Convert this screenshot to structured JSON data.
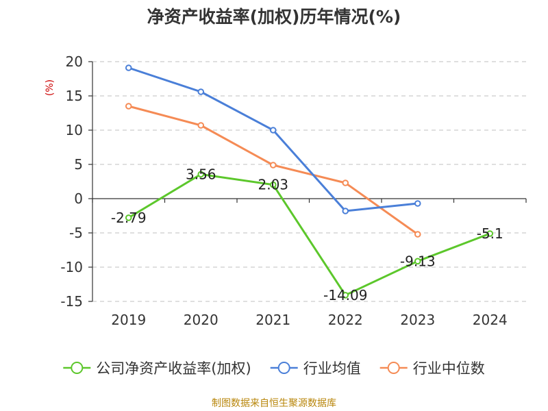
{
  "chart_data": {
    "type": "line",
    "title": "净资产收益率(加权)历年情况(%)",
    "ylabel": "(%)",
    "xlabel": "",
    "categories": [
      "2019",
      "2020",
      "2021",
      "2022",
      "2023",
      "2024"
    ],
    "ylim": [
      -15,
      20
    ],
    "yticks": [
      20,
      15,
      10,
      5,
      0,
      -5,
      -10,
      -15
    ],
    "grid": true,
    "legend_position": "bottom",
    "series": [
      {
        "name": "公司净资产收益率(加权)",
        "color": "#5cc72b",
        "values": [
          -2.79,
          3.56,
          2.03,
          -14.09,
          -9.13,
          -5.1
        ],
        "labels": [
          "-2.79",
          "3.56",
          "2.03",
          "-14.09",
          "-9.13",
          "-5.1"
        ]
      },
      {
        "name": "行业均值",
        "color": "#4a7fd8",
        "values": [
          19.1,
          15.6,
          10.0,
          -1.8,
          -0.7,
          null
        ]
      },
      {
        "name": "行业中位数",
        "color": "#f58b55",
        "values": [
          13.5,
          10.7,
          4.9,
          2.3,
          -5.2,
          null
        ]
      }
    ],
    "source": "制图数据来自恒生聚源数据库"
  }
}
